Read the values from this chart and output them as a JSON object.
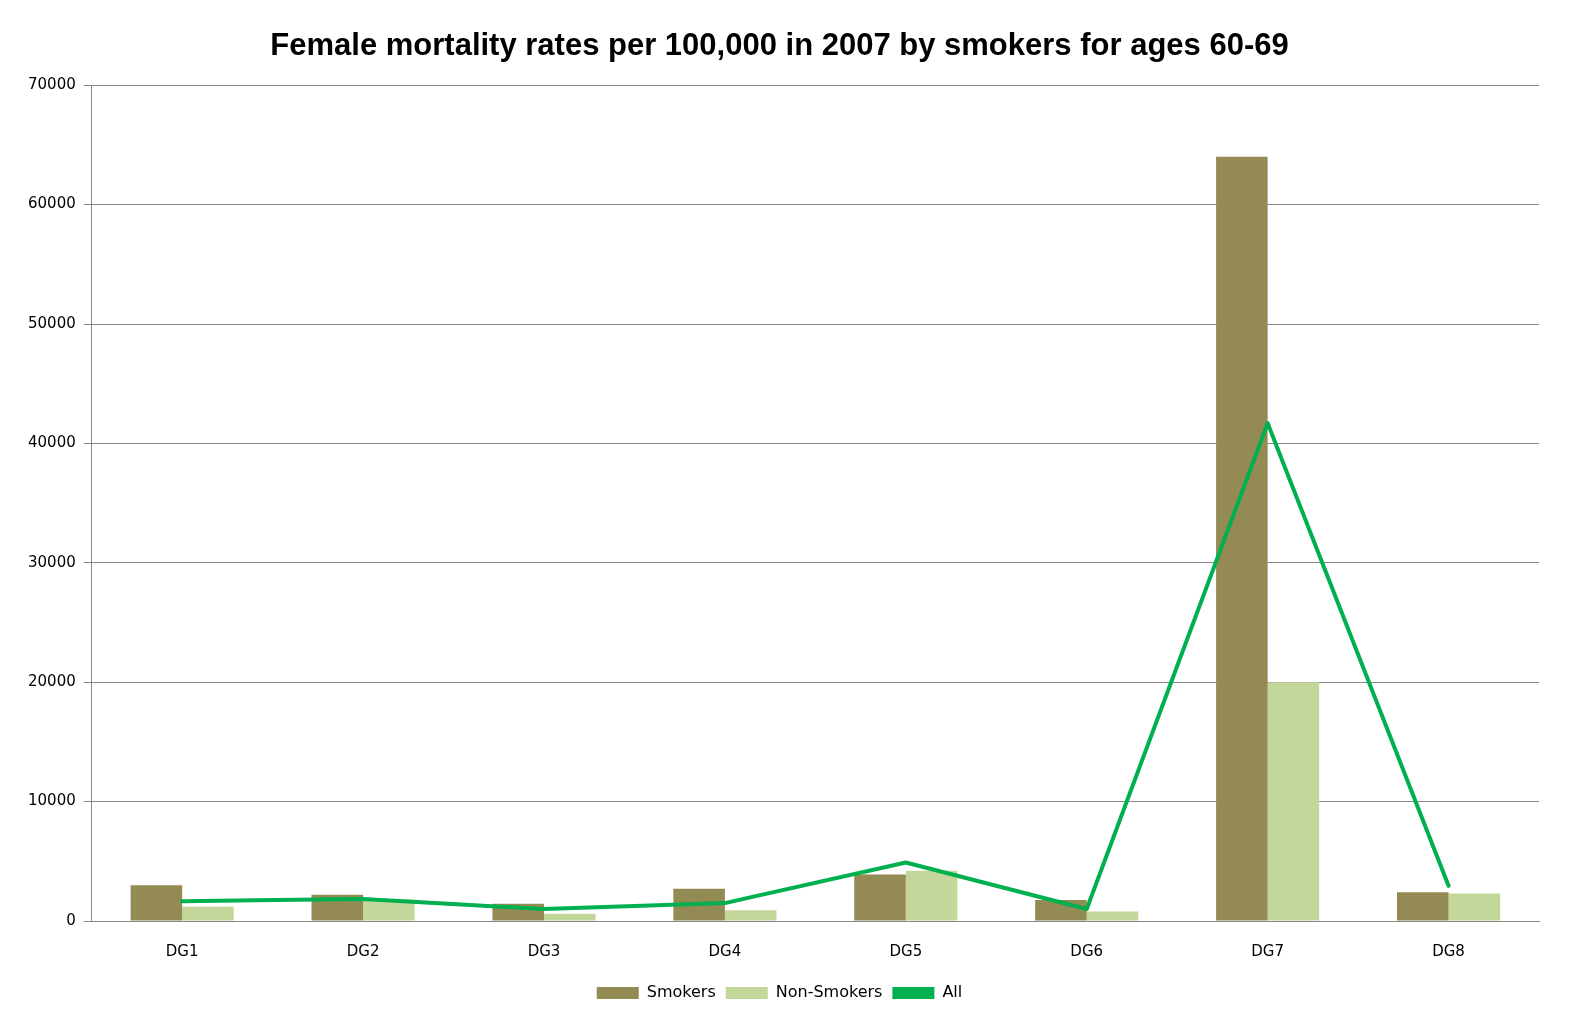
{
  "chart_data": {
    "type": "bar",
    "title": "Female mortality rates per 100,000 in 2007 by smokers for ages 60-69",
    "categories": [
      "DG1",
      "DG2",
      "DG3",
      "DG4",
      "DG5",
      "DG6",
      "DG7",
      "DG8"
    ],
    "series": [
      {
        "name": "Smokers",
        "color": "#948a54",
        "values": [
          3000,
          2200,
          1450,
          2700,
          3900,
          1750,
          64000,
          2400
        ]
      },
      {
        "name": "Non-Smokers",
        "color": "#c4d79b",
        "values": [
          1200,
          1800,
          600,
          900,
          4200,
          800,
          20000,
          2300
        ]
      },
      {
        "name": "All",
        "type": "line",
        "color": "#00b050",
        "values": [
          1650,
          1850,
          1000,
          1500,
          4900,
          1000,
          41700,
          2950
        ]
      }
    ],
    "ylim": [
      0,
      70000
    ],
    "yticks": [
      0,
      10000,
      20000,
      30000,
      40000,
      50000,
      60000,
      70000
    ],
    "grid": "y",
    "legend": "bottom",
    "marker": "none"
  }
}
